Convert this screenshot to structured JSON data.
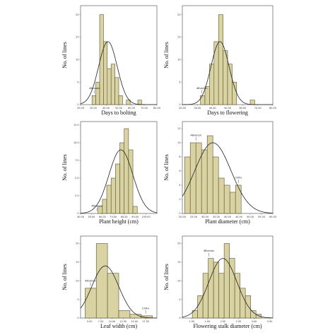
{
  "figure": {
    "panel_order": [
      "days-to-bolting",
      "days-to-flowering",
      "plant-height",
      "plant-diameter",
      "leaf-width",
      "flowering-stalk-diameter"
    ]
  },
  "chart_data": [
    {
      "id": "days-to-bolting",
      "type": "bar",
      "title": "",
      "xlabel": "Days to bolting",
      "ylabel": "No. of lines",
      "xlim": [
        20,
        80
      ],
      "ylim": [
        0,
        22
      ],
      "x_ticks": [
        "20.00",
        "30.00",
        "40.00",
        "50.00",
        "60.00",
        "70.00",
        "80.00"
      ],
      "y_ticks": [
        "0",
        "5",
        "10",
        "15",
        "20"
      ],
      "bin_width": 3,
      "bin_starts": [
        29,
        32,
        35,
        38,
        41,
        44,
        47,
        50,
        53,
        56,
        59,
        62,
        65,
        68
      ],
      "values": [
        2,
        5,
        20,
        14,
        8,
        9,
        6,
        2,
        0,
        1,
        0,
        0,
        1,
        0
      ],
      "normal_curve": {
        "mean": 41.5,
        "sd": 7.3,
        "peak": 14
      },
      "annotations": [
        {
          "text": "48vanon",
          "x": 31
        }
      ],
      "grid": false,
      "legend": "none"
    },
    {
      "id": "days-to-flowering",
      "type": "bar",
      "title": "",
      "xlabel": "Days to flowering",
      "ylabel": "No. of lines",
      "xlim": [
        20,
        80
      ],
      "ylim": [
        0,
        22
      ],
      "x_ticks": [
        "20.00",
        "30.00",
        "40.00",
        "50.00",
        "60.00",
        "70.00",
        "80.00"
      ],
      "y_ticks": [
        "0",
        "5",
        "10",
        "15",
        "20"
      ],
      "bin_width": 3,
      "bin_starts": [
        32,
        35,
        38,
        41,
        44,
        47,
        50,
        53,
        56,
        59,
        62,
        65
      ],
      "values": [
        2,
        4,
        9,
        14,
        20,
        12,
        9,
        5,
        0,
        0,
        0,
        1
      ],
      "normal_curve": {
        "mean": 45,
        "sd": 6,
        "peak": 14
      },
      "annotations": [
        {
          "text": "48vanon",
          "x": 33
        }
      ],
      "grid": false,
      "legend": "none"
    },
    {
      "id": "plant-height",
      "type": "bar",
      "title": "",
      "xlabel": "Plant height (cm)",
      "ylabel": "No. of lines",
      "xlim": [
        40,
        110
      ],
      "ylim": [
        0,
        13
      ],
      "x_ticks": [
        "40.00",
        "50.00",
        "60.00",
        "70.00",
        "80.00",
        "90.00",
        "100.00"
      ],
      "y_ticks": [
        "0",
        "2.5",
        "5.0",
        "7.5",
        "10.0",
        "12.5"
      ],
      "bin_width": 4,
      "bin_starts": [
        56,
        60,
        64,
        68,
        72,
        76,
        80,
        84,
        88
      ],
      "values": [
        1,
        2,
        4,
        5,
        7,
        10,
        12,
        9,
        1
      ],
      "normal_curve": {
        "mean": 77,
        "sd": 11,
        "peak": 9
      },
      "annotations": [
        {
          "text": "48vanon",
          "x": 55
        }
      ],
      "grid": false,
      "legend": "none"
    },
    {
      "id": "plant-diameter",
      "type": "bar",
      "title": "",
      "xlabel": "Plant diameter (cm)",
      "ylabel": "No. of lines",
      "xlim": [
        20,
        60
      ],
      "ylim": [
        0,
        13
      ],
      "x_ticks": [
        "20.00",
        "25.00",
        "30.00",
        "35.00",
        "40.00",
        "45.00",
        "50.00",
        "55.00",
        "60.00"
      ],
      "y_ticks": [
        "0",
        "2",
        "4",
        "6",
        "8",
        "10",
        "12"
      ],
      "bin_width": 2.5,
      "bin_starts": [
        21,
        23.5,
        26,
        28.5,
        31,
        33.5,
        36,
        38.5,
        41,
        43.5
      ],
      "values": [
        8,
        10,
        10,
        9,
        11,
        8,
        5,
        4,
        3,
        4
      ],
      "normal_curve": {
        "mean": 33.5,
        "sd": 8,
        "peak": 10
      },
      "annotations": [
        {
          "text": "48vanon",
          "x": 26
        },
        {
          "text": "ChiFu",
          "x": 44.8
        }
      ],
      "grid": false,
      "legend": "none"
    },
    {
      "id": "leaf-width",
      "type": "bar",
      "title": "",
      "xlabel": "Leaf width (cm)",
      "ylabel": "No. of lines",
      "xlim": [
        3,
        20
      ],
      "ylim": [
        0,
        22
      ],
      "x_ticks": [
        "5.00",
        "7.50",
        "10.00",
        "12.50",
        "15.00",
        "17.50"
      ],
      "y_ticks": [
        "0",
        "5",
        "10",
        "15",
        "20"
      ],
      "bin_width": 2.5,
      "bin_starts": [
        4,
        6.5,
        9,
        11.5,
        14,
        16.5
      ],
      "values": [
        8,
        20,
        12,
        2,
        1,
        0.6
      ],
      "normal_curve": {
        "mean": 8.5,
        "sd": 3,
        "peak": 14
      },
      "annotations": [
        {
          "text": "48vanon",
          "x": 5.2
        },
        {
          "text": "ChiFu",
          "x": 17.5
        }
      ],
      "grid": false,
      "legend": "none"
    },
    {
      "id": "flowering-stalk-diameter",
      "type": "bar",
      "title": "",
      "xlabel": "Flowering stalk diameter (cm)",
      "ylabel": "No. of lines",
      "xlim": [
        0.7,
        3.6
      ],
      "ylim": [
        0,
        22
      ],
      "x_ticks": [
        "1.00",
        "1.50",
        "2.00",
        "2.50",
        "3.00",
        "3.50"
      ],
      "y_ticks": [
        "0",
        "5",
        "10",
        "15",
        "20"
      ],
      "bin_width": 0.17,
      "bin_starts": [
        1.02,
        1.19,
        1.36,
        1.53,
        1.7,
        1.87,
        2.04,
        2.21,
        2.38,
        2.55,
        2.72,
        2.89,
        3.06
      ],
      "values": [
        2,
        6,
        12,
        16,
        15,
        12,
        20,
        16,
        12,
        8,
        6,
        2,
        1
      ],
      "normal_curve": {
        "mean": 2.0,
        "sd": 0.45,
        "peak": 16
      },
      "annotations": [
        {
          "text": "48vanon",
          "x": 1.55
        }
      ],
      "grid": false,
      "legend": "none"
    }
  ]
}
